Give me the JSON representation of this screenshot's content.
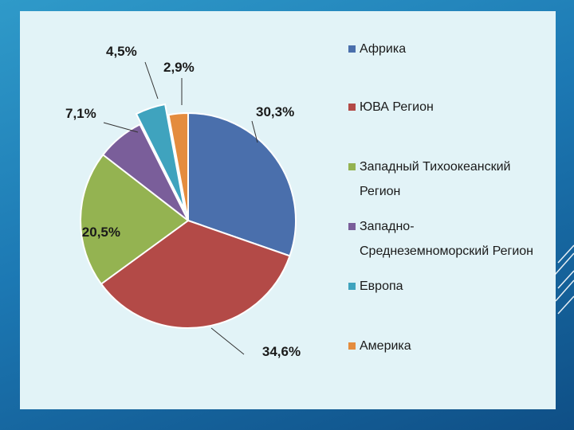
{
  "chart_data": {
    "type": "pie",
    "categories": [
      "Африка",
      "ЮВА Регион",
      "Западный Тихоокеанский Регион",
      "Западно-Среднеземноморский Регион",
      "Европа",
      "Америка"
    ],
    "legend_lines": [
      [
        "Африка"
      ],
      [
        "ЮВА Регион"
      ],
      [
        "Западный Тихоокеанский",
        "Регион"
      ],
      [
        "Западно-",
        "Среднеземноморский Регион"
      ],
      [
        "Европа"
      ],
      [
        "Америка"
      ]
    ],
    "values": [
      30.3,
      34.6,
      20.5,
      7.1,
      4.5,
      2.9
    ],
    "labels": [
      "30,3%",
      "34,6%",
      "20,5%",
      "7,1%",
      "4,5%",
      "2,9%"
    ],
    "colors": [
      "#4a6fac",
      "#b34a47",
      "#94b351",
      "#7a5e9a",
      "#3fa3be",
      "#e48c3e"
    ],
    "exploded": [
      false,
      false,
      false,
      false,
      true,
      false
    ],
    "legend_position": "right"
  },
  "colors": {
    "panel_background": "#e2f3f7",
    "slide_background": "#1c78b3"
  }
}
